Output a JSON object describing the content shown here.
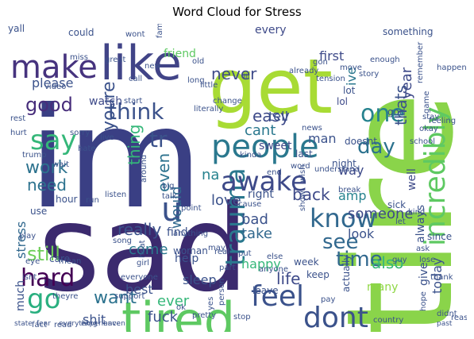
{
  "chart_data": {
    "type": "wordcloud",
    "title": "Word Cloud for Stress",
    "words": [
      {
        "text": "sad",
        "color": "#3b2a6e"
      },
      {
        "text": "im",
        "color": "#3a3f84"
      },
      {
        "text": "tire",
        "color": "#8ad44a"
      },
      {
        "text": "get",
        "color": "#a8db34"
      },
      {
        "text": "tired",
        "color": "#5ec962"
      },
      {
        "text": "like",
        "color": "#414487"
      },
      {
        "text": "make",
        "color": "#46337e"
      },
      {
        "text": "people",
        "color": "#2a788e"
      },
      {
        "text": "incredibly",
        "color": "#5ec962"
      },
      {
        "text": "trauma",
        "color": "#2a788e"
      },
      {
        "text": "dont",
        "color": "#3b528b"
      },
      {
        "text": "feel",
        "color": "#3b528b"
      },
      {
        "text": "awake",
        "color": "#3e4a89"
      },
      {
        "text": "know",
        "color": "#31688e"
      },
      {
        "text": "think",
        "color": "#3b528b"
      },
      {
        "text": "one",
        "color": "#26828e"
      },
      {
        "text": "day",
        "color": "#2c728e"
      },
      {
        "text": "time",
        "color": "#31688e"
      },
      {
        "text": "say",
        "color": "#35b779"
      },
      {
        "text": "go",
        "color": "#29af7f"
      },
      {
        "text": "hard",
        "color": "#440154"
      },
      {
        "text": "tr",
        "color": "#3b528b"
      },
      {
        "text": "see",
        "color": "#31688e"
      },
      {
        "text": "u",
        "color": "#3b528b"
      },
      {
        "text": "youre",
        "color": "#3b528b"
      },
      {
        "text": "good",
        "color": "#472d7b"
      },
      {
        "text": "never",
        "color": "#3e4a89"
      },
      {
        "text": "easy",
        "color": "#3e4a89"
      },
      {
        "text": "cant",
        "color": "#2a788e"
      },
      {
        "text": "thats",
        "color": "#3b528b"
      },
      {
        "text": "year",
        "color": "#3e4a89"
      },
      {
        "text": "work",
        "color": "#2c728e"
      },
      {
        "text": "need",
        "color": "#2c728e"
      },
      {
        "text": "thing",
        "color": "#35b779"
      },
      {
        "text": "even",
        "color": "#2c728e"
      },
      {
        "text": "would",
        "color": "#31688e"
      },
      {
        "text": "love",
        "color": "#3b528b"
      },
      {
        "text": "na",
        "color": "#26828e"
      },
      {
        "text": "really",
        "color": "#3b528b"
      },
      {
        "text": "come",
        "color": "#2a788e"
      },
      {
        "text": "stress",
        "color": "#31688e"
      },
      {
        "text": "still",
        "color": "#6ece58"
      },
      {
        "text": "much",
        "color": "#3b528b"
      },
      {
        "text": "want",
        "color": "#2c728e"
      },
      {
        "text": "shit",
        "color": "#3b528b"
      },
      {
        "text": "fuck",
        "color": "#3b528b"
      },
      {
        "text": "ever",
        "color": "#35b779"
      },
      {
        "text": "best",
        "color": "#3b528b"
      },
      {
        "text": "sleep",
        "color": "#3b528b"
      },
      {
        "text": "life",
        "color": "#3e4a89"
      },
      {
        "text": "back",
        "color": "#3e4a89"
      },
      {
        "text": "amp",
        "color": "#26828e"
      },
      {
        "text": "someone",
        "color": "#3e4a89"
      },
      {
        "text": "look",
        "color": "#3b528b"
      },
      {
        "text": "take",
        "color": "#31688e"
      },
      {
        "text": "bad",
        "color": "#3b528b"
      },
      {
        "text": "happy",
        "color": "#35b779"
      },
      {
        "text": "also",
        "color": "#35b779"
      },
      {
        "text": "many",
        "color": "#8fd744"
      },
      {
        "text": "today",
        "color": "#3b528b"
      },
      {
        "text": "always",
        "color": "#3b528b"
      },
      {
        "text": "give",
        "color": "#3b528b"
      },
      {
        "text": "way",
        "color": "#3e4a89"
      },
      {
        "text": "well",
        "color": "#3e4a89"
      },
      {
        "text": "man",
        "color": "#3b528b"
      },
      {
        "text": "tell",
        "color": "#3b528b"
      },
      {
        "text": "first",
        "color": "#3e4a89"
      },
      {
        "text": "every",
        "color": "#3e4a89"
      },
      {
        "text": "friend",
        "color": "#5ec962"
      },
      {
        "text": "please",
        "color": "#3b528b"
      },
      {
        "text": "watch",
        "color": "#3e4a89"
      },
      {
        "text": "ive",
        "color": "#2a788e"
      },
      {
        "text": "lol",
        "color": "#3e4a89"
      },
      {
        "text": "right",
        "color": "#3b528b"
      },
      {
        "text": "find",
        "color": "#3b528b"
      },
      {
        "text": "help",
        "color": "#3b528b"
      },
      {
        "text": "leave",
        "color": "#3b528b"
      },
      {
        "text": "keep",
        "color": "#3b528b"
      },
      {
        "text": "actually",
        "color": "#3b528b"
      },
      {
        "text": "use",
        "color": "#3b528b"
      },
      {
        "text": "night",
        "color": "#3b528b"
      },
      {
        "text": "could",
        "color": "#3b528b"
      },
      {
        "text": "something",
        "color": "#3b528b"
      },
      {
        "text": "new",
        "color": "#3b528b"
      },
      {
        "text": "call",
        "color": "#3b528b"
      },
      {
        "text": "family",
        "color": "#3b528b"
      },
      {
        "text": "long",
        "color": "#3b528b"
      },
      {
        "text": "sweet",
        "color": "#3e4a89"
      },
      {
        "text": "last",
        "color": "#3b528b"
      },
      {
        "text": "lot",
        "color": "#3b528b"
      },
      {
        "text": "god",
        "color": "#3b528b"
      },
      {
        "text": "doesnt",
        "color": "#3b528b"
      },
      {
        "text": "hour",
        "color": "#3b528b"
      },
      {
        "text": "run",
        "color": "#3b528b"
      },
      {
        "text": "listen",
        "color": "#3b528b"
      },
      {
        "text": "woman",
        "color": "#3b528b"
      },
      {
        "text": "girl",
        "color": "#3b528b"
      },
      {
        "text": "care",
        "color": "#3b528b"
      },
      {
        "text": "week",
        "color": "#3b528b"
      },
      {
        "text": "sick",
        "color": "#3b528b"
      },
      {
        "text": "since",
        "color": "#3b528b"
      },
      {
        "text": "yall",
        "color": "#3b528b"
      },
      {
        "text": "wont",
        "color": "#3b528b"
      },
      {
        "text": "start",
        "color": "#3b528b"
      },
      {
        "text": "little",
        "color": "#3b528b"
      },
      {
        "text": "ill",
        "color": "#3b528b"
      },
      {
        "text": "already",
        "color": "#3b528b"
      },
      {
        "text": "tension",
        "color": "#3b528b"
      },
      {
        "text": "story",
        "color": "#3b528b"
      },
      {
        "text": "move",
        "color": "#3b528b"
      },
      {
        "text": "enough",
        "color": "#3b528b"
      },
      {
        "text": "around",
        "color": "#3b528b"
      },
      {
        "text": "live",
        "color": "#3b528b"
      },
      {
        "text": "big",
        "color": "#3b528b"
      },
      {
        "text": "talk",
        "color": "#3b528b"
      },
      {
        "text": "song",
        "color": "#3b528b"
      },
      {
        "text": "school",
        "color": "#3b528b"
      },
      {
        "text": "okay",
        "color": "#3b528b"
      },
      {
        "text": "stay",
        "color": "#3b528b"
      },
      {
        "text": "rest",
        "color": "#3b528b"
      },
      {
        "text": "hurt",
        "color": "#3b528b"
      },
      {
        "text": "video",
        "color": "#3b528b"
      },
      {
        "text": "miss",
        "color": "#3b528b"
      },
      {
        "text": "old",
        "color": "#3b528b"
      },
      {
        "text": "hate",
        "color": "#3b528b"
      },
      {
        "text": "wait",
        "color": "#3b528b"
      },
      {
        "text": "trump",
        "color": "#3b528b"
      },
      {
        "text": "point",
        "color": "#3b528b"
      },
      {
        "text": "cause",
        "color": "#3b528b"
      },
      {
        "text": "wish",
        "color": "#3b528b"
      },
      {
        "text": "show",
        "color": "#3b528b"
      },
      {
        "text": "break",
        "color": "#3b528b"
      },
      {
        "text": "kind",
        "color": "#3b528b"
      },
      {
        "text": "guy",
        "color": "#3b528b"
      },
      {
        "text": "let",
        "color": "#3b528b"
      },
      {
        "text": "ask",
        "color": "#3b528b"
      },
      {
        "text": "lose",
        "color": "#3b528b"
      },
      {
        "text": "thank",
        "color": "#3b528b"
      },
      {
        "text": "reason",
        "color": "#3b528b"
      },
      {
        "text": "didnt",
        "color": "#3b528b"
      },
      {
        "text": "country",
        "color": "#3b528b"
      },
      {
        "text": "anyone",
        "color": "#3b528b"
      },
      {
        "text": "else",
        "color": "#3b528b"
      },
      {
        "text": "put",
        "color": "#3b528b"
      },
      {
        "text": "real",
        "color": "#3b528b"
      },
      {
        "text": "part",
        "color": "#3b528b"
      },
      {
        "text": "may",
        "color": "#3b528b"
      },
      {
        "text": "everyone",
        "color": "#3b528b"
      },
      {
        "text": "support",
        "color": "#3b528b"
      },
      {
        "text": "theyre",
        "color": "#3b528b"
      },
      {
        "text": "fact",
        "color": "#3b528b"
      },
      {
        "text": "read",
        "color": "#3b528b"
      },
      {
        "text": "play",
        "color": "#3b528b"
      },
      {
        "text": "isnt",
        "color": "#3b528b"
      },
      {
        "text": "ok",
        "color": "#3b528b"
      },
      {
        "text": "yes",
        "color": "#3b528b"
      },
      {
        "text": "person",
        "color": "#3b528b"
      },
      {
        "text": "stop",
        "color": "#3b528b"
      },
      {
        "text": "pretty",
        "color": "#3b528b"
      },
      {
        "text": "anything",
        "color": "#3b528b"
      },
      {
        "text": "kinda",
        "color": "#3b528b"
      },
      {
        "text": "end",
        "color": "#3b528b"
      },
      {
        "text": "heat",
        "color": "#3b528b"
      },
      {
        "text": "sorry",
        "color": "#3b528b"
      },
      {
        "text": "great",
        "color": "#3b528b"
      },
      {
        "text": "gon",
        "color": "#3b528b"
      },
      {
        "text": "literally",
        "color": "#3b528b"
      },
      {
        "text": "news",
        "color": "#3b528b"
      },
      {
        "text": "feeling",
        "color": "#3b528b"
      },
      {
        "text": "game",
        "color": "#3b528b"
      },
      {
        "text": "remember",
        "color": "#3b528b"
      },
      {
        "text": "happen",
        "color": "#3b528b"
      },
      {
        "text": "understand",
        "color": "#3b528b"
      },
      {
        "text": "pay",
        "color": "#3b528b"
      },
      {
        "text": "mean",
        "color": "#3b528b"
      },
      {
        "text": "eye",
        "color": "#3b528b"
      },
      {
        "text": "hope",
        "color": "#3b528b"
      },
      {
        "text": "word",
        "color": "#3b528b"
      },
      {
        "text": "change",
        "color": "#3b528b"
      },
      {
        "text": "past",
        "color": "#3b528b"
      },
      {
        "text": "state",
        "color": "#3b528b"
      },
      {
        "text": "fear",
        "color": "#3b528b"
      },
      {
        "text": "everything",
        "color": "#3b528b"
      },
      {
        "text": "experience",
        "color": "#3b528b"
      },
      {
        "text": "haven",
        "color": "#3b528b"
      }
    ]
  }
}
